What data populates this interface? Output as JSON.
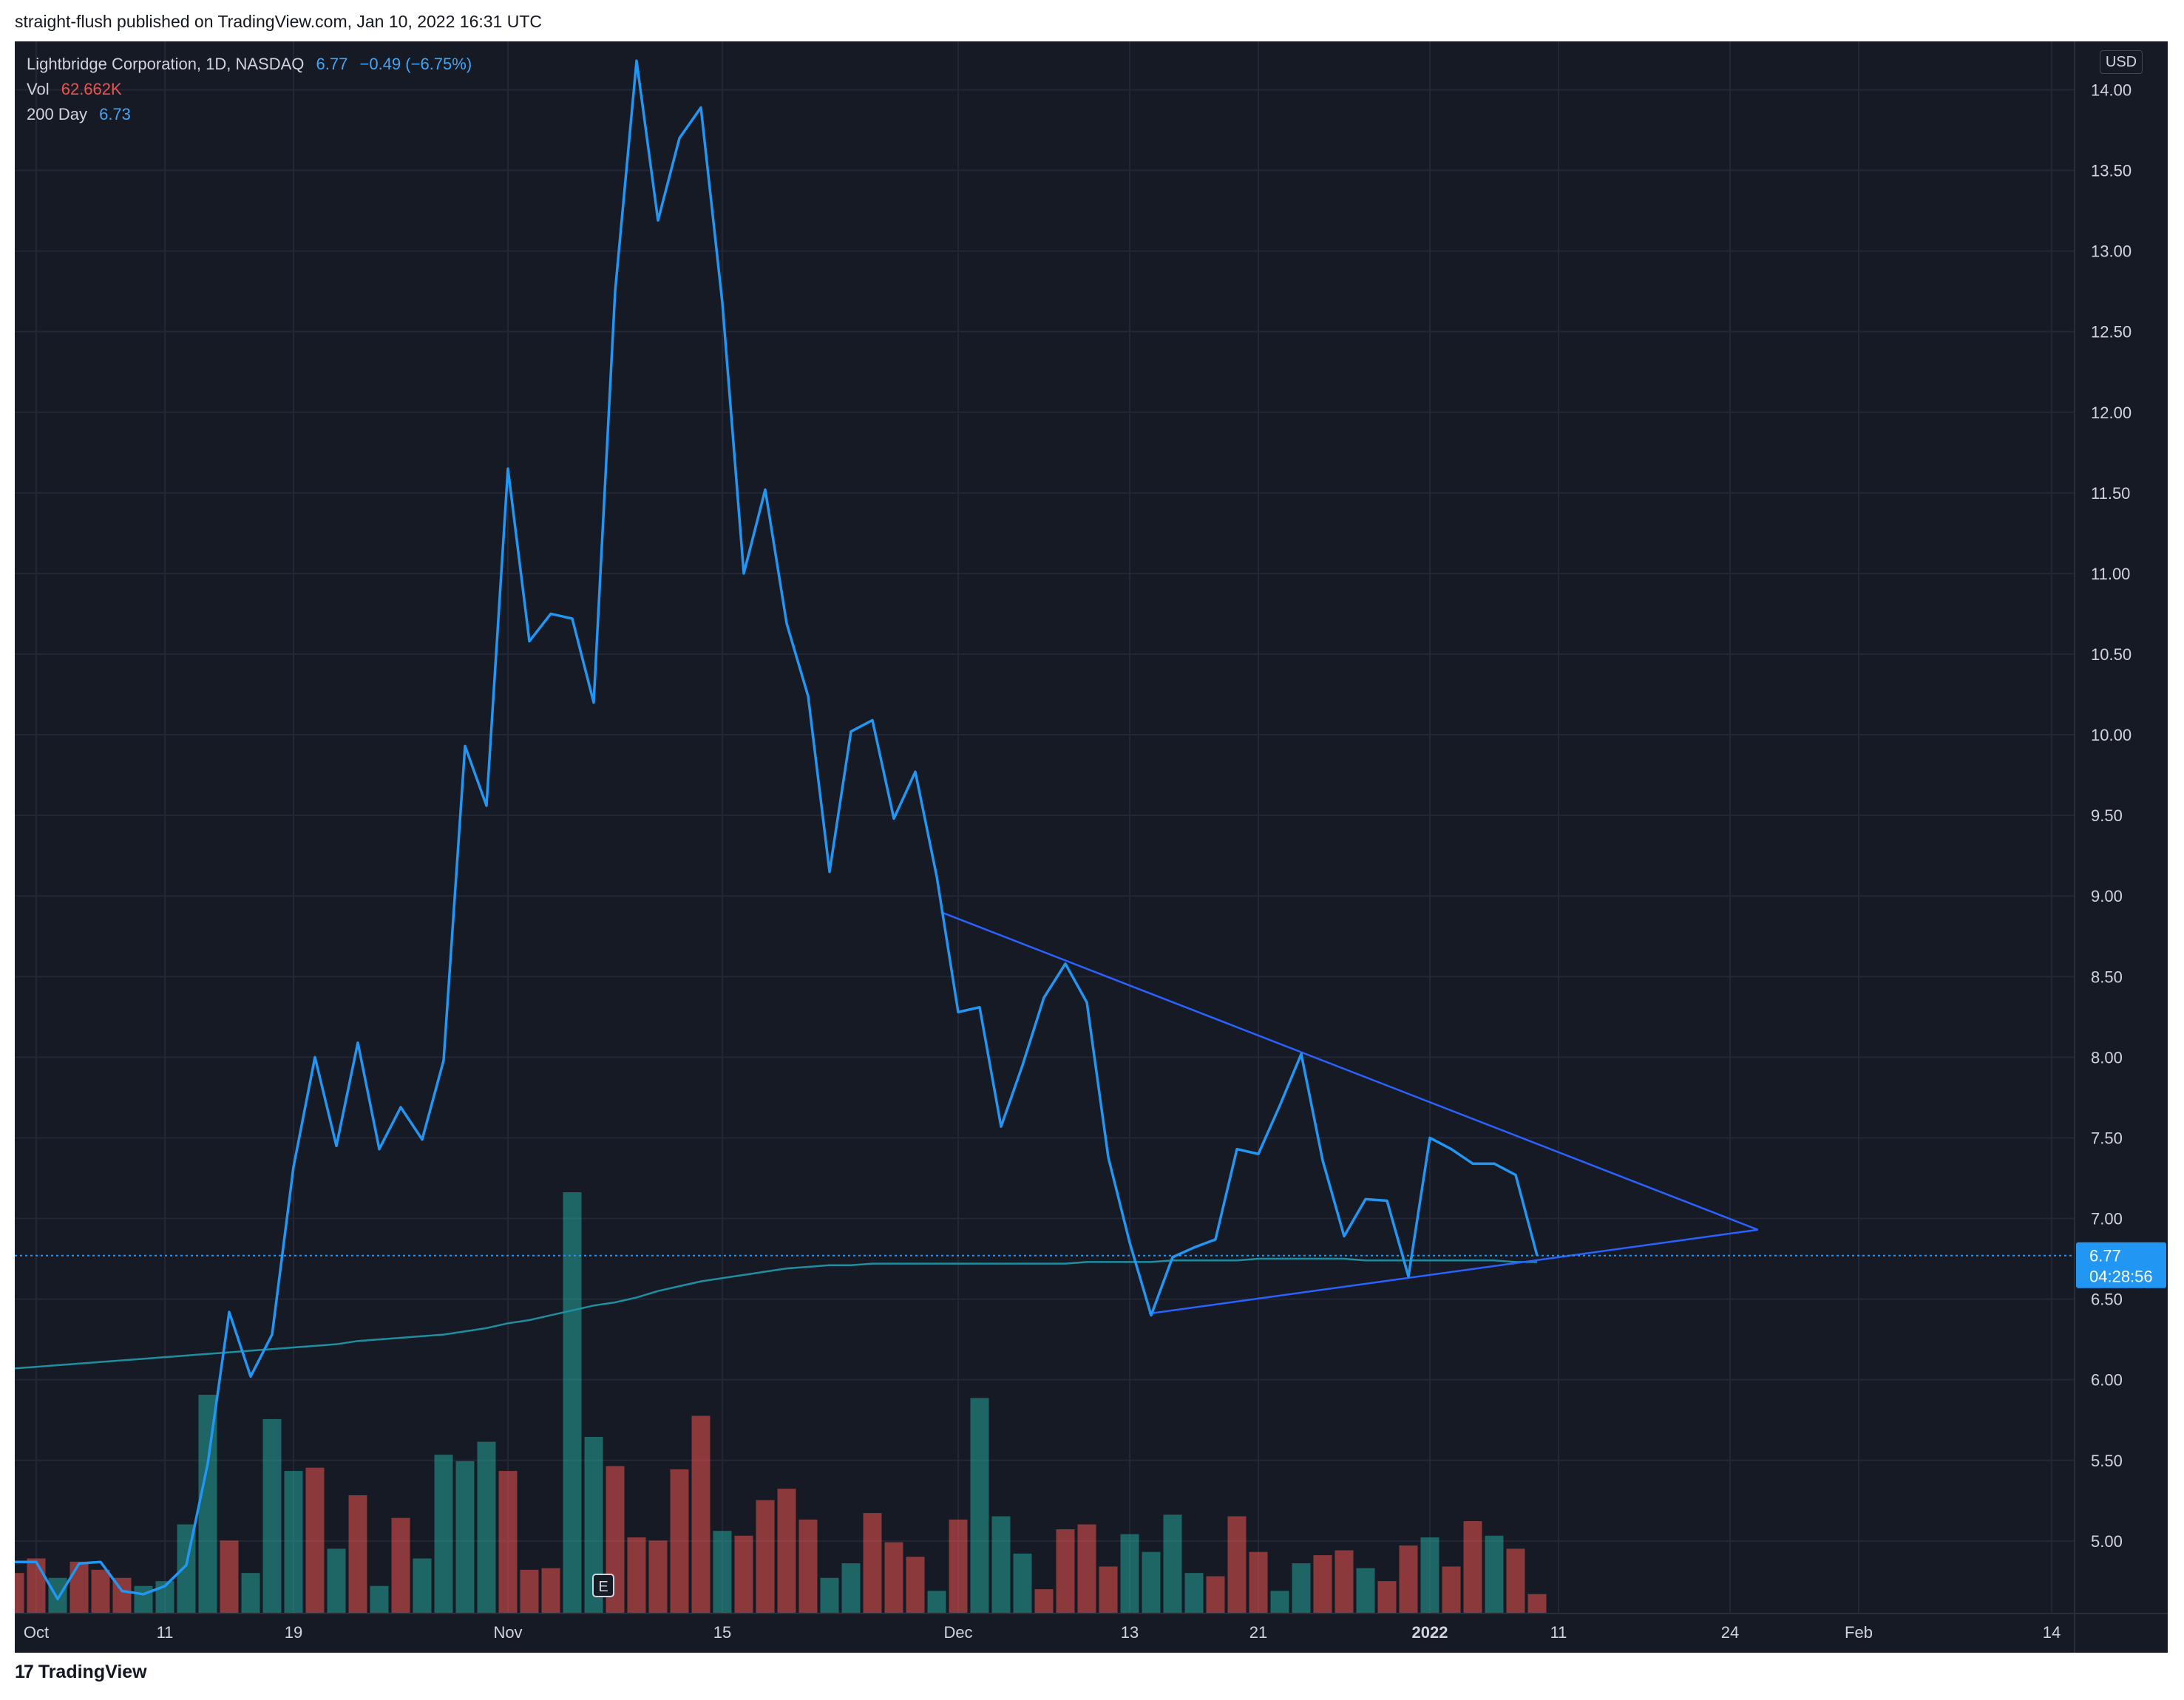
{
  "header": {
    "published_line": "straight-flush published on TradingView.com, Jan 10, 2022 16:31 UTC"
  },
  "legend": {
    "symbol": "Lightbridge Corporation, 1D, NASDAQ",
    "price": "6.77",
    "change": "−0.49 (−6.75%)",
    "vol_label": "Vol",
    "vol_value": "62.662K",
    "ma_label": "200 Day",
    "ma_value": "6.73"
  },
  "currency": "USD",
  "footer": {
    "logo_mark": "17",
    "brand": "TradingView"
  },
  "colors": {
    "background": "#161a25",
    "price_line": "#2196f3",
    "ma_line": "#1e8fa0",
    "trendline": "#2962ff",
    "volume_up": "#26a69a",
    "volume_down": "#ef5350",
    "price_label_bg": "#2196f3"
  },
  "chart_data": {
    "type": "line",
    "title": "Lightbridge Corporation, 1D, NASDAQ",
    "ylim": [
      4.55,
      14.3
    ],
    "y_ticks": [
      "14.00",
      "13.50",
      "13.00",
      "12.50",
      "12.00",
      "11.50",
      "11.00",
      "10.50",
      "10.00",
      "9.50",
      "9.00",
      "8.50",
      "8.00",
      "7.50",
      "7.00",
      "6.50",
      "6.00",
      "5.50",
      "5.00"
    ],
    "x_ticks": [
      {
        "label": "Oct",
        "idx": 1,
        "bold": false
      },
      {
        "label": "11",
        "idx": 7,
        "bold": false
      },
      {
        "label": "19",
        "idx": 13,
        "bold": false
      },
      {
        "label": "Nov",
        "idx": 23,
        "bold": false
      },
      {
        "label": "15",
        "idx": 33,
        "bold": false
      },
      {
        "label": "Dec",
        "idx": 44,
        "bold": false
      },
      {
        "label": "13",
        "idx": 52,
        "bold": false
      },
      {
        "label": "21",
        "idx": 58,
        "bold": false
      },
      {
        "label": "2022",
        "idx": 66,
        "bold": true
      },
      {
        "label": "11",
        "idx": 72,
        "bold": false
      },
      {
        "label": "24",
        "idx": 80,
        "bold": false
      },
      {
        "label": "Feb",
        "idx": 86,
        "bold": false
      },
      {
        "label": "14",
        "idx": 95,
        "bold": false
      }
    ],
    "series": [
      {
        "name": "Lightbridge Corporation",
        "values": [
          4.87,
          4.87,
          4.64,
          4.86,
          4.87,
          4.69,
          4.67,
          4.72,
          4.85,
          5.48,
          6.42,
          6.02,
          6.28,
          7.32,
          8.0,
          7.45,
          8.09,
          7.43,
          7.69,
          7.49,
          7.98,
          9.93,
          9.56,
          11.65,
          10.58,
          10.75,
          10.72,
          10.2,
          12.75,
          14.18,
          13.19,
          13.7,
          13.89,
          12.68,
          11.0,
          11.52,
          10.69,
          10.24,
          9.15,
          10.02,
          10.09,
          9.48,
          9.77,
          9.12,
          8.28,
          8.31,
          7.57,
          7.95,
          8.37,
          8.58,
          8.34,
          7.38,
          6.85,
          6.4,
          6.76,
          6.82,
          6.87,
          7.43,
          7.4,
          7.7,
          8.02,
          7.36,
          6.89,
          7.12,
          7.11,
          6.64,
          7.5,
          7.43,
          7.34,
          7.34,
          7.27,
          6.77
        ]
      },
      {
        "name": "200 Day",
        "values": [
          6.07,
          6.08,
          6.09,
          6.1,
          6.11,
          6.12,
          6.13,
          6.14,
          6.15,
          6.16,
          6.17,
          6.18,
          6.19,
          6.2,
          6.21,
          6.22,
          6.24,
          6.25,
          6.26,
          6.27,
          6.28,
          6.3,
          6.32,
          6.35,
          6.37,
          6.4,
          6.43,
          6.46,
          6.48,
          6.51,
          6.55,
          6.58,
          6.61,
          6.63,
          6.65,
          6.67,
          6.69,
          6.7,
          6.71,
          6.71,
          6.72,
          6.72,
          6.72,
          6.72,
          6.72,
          6.72,
          6.72,
          6.72,
          6.72,
          6.72,
          6.73,
          6.73,
          6.73,
          6.73,
          6.74,
          6.74,
          6.74,
          6.74,
          6.75,
          6.75,
          6.75,
          6.75,
          6.75,
          6.74,
          6.74,
          6.74,
          6.74,
          6.74,
          6.74,
          6.74,
          6.73,
          6.73
        ]
      }
    ],
    "volume": {
      "name": "Vol",
      "values": [
        25,
        34,
        22,
        32,
        27,
        22,
        17,
        20,
        55,
        135,
        45,
        25,
        120,
        88,
        90,
        40,
        73,
        17,
        59,
        34,
        98,
        94,
        106,
        88,
        27,
        28,
        260,
        109,
        91,
        47,
        45,
        89,
        122,
        51,
        48,
        70,
        77,
        58,
        22,
        31,
        62,
        44,
        35,
        14,
        58,
        133,
        60,
        37,
        15,
        52,
        55,
        29,
        49,
        38,
        61,
        25,
        23,
        60,
        38,
        14,
        31,
        36,
        39,
        28,
        20,
        42,
        47,
        29,
        57,
        48,
        40,
        12
      ],
      "direction": [
        "down",
        "down",
        "up",
        "down",
        "down",
        "down",
        "up",
        "up",
        "up",
        "up",
        "down",
        "up",
        "up",
        "up",
        "down",
        "up",
        "down",
        "up",
        "down",
        "up",
        "up",
        "up",
        "up",
        "down",
        "down",
        "down",
        "up",
        "up",
        "down",
        "down",
        "down",
        "down",
        "down",
        "up",
        "down",
        "down",
        "down",
        "down",
        "up",
        "up",
        "down",
        "down",
        "down",
        "up",
        "down",
        "up",
        "up",
        "up",
        "down",
        "down",
        "down",
        "down",
        "up",
        "up",
        "up",
        "up",
        "down",
        "down",
        "down",
        "up",
        "up",
        "down",
        "down",
        "up",
        "down",
        "down",
        "up",
        "down",
        "down",
        "up",
        "down",
        "down"
      ]
    },
    "trendlines": [
      {
        "from": {
          "idx": 43.2,
          "y": 8.9
        },
        "to": {
          "idx": 81.3,
          "y": 6.93
        }
      },
      {
        "from": {
          "idx": 52.9,
          "y": 6.41
        },
        "to": {
          "idx": 81.3,
          "y": 6.93
        }
      }
    ],
    "current_price": {
      "value": 6.77,
      "label": "6.77",
      "countdown": "04:28:56"
    }
  }
}
